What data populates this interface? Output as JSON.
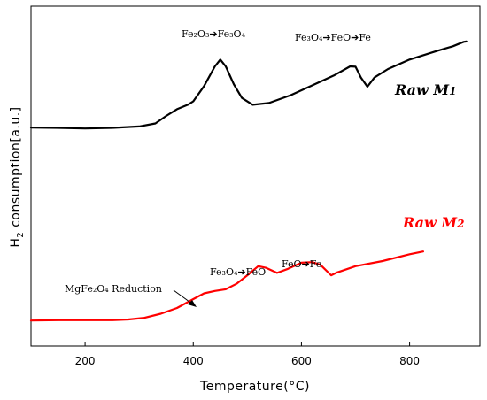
{
  "chart_data": {
    "type": "line",
    "xlabel": "Temperature(°C)",
    "ylabel_main": "H",
    "ylabel_sub": "2",
    "ylabel_rest": " consumption[a.u.]",
    "xlim": [
      100,
      930
    ],
    "ylim": [
      0,
      100
    ],
    "xticks": [
      200,
      400,
      600,
      800
    ],
    "series": [
      {
        "name_main": "Raw M",
        "name_sub": "1",
        "color": "#000000",
        "points": [
          [
            100,
            64.3
          ],
          [
            150,
            64.2
          ],
          [
            200,
            64.0
          ],
          [
            250,
            64.2
          ],
          [
            300,
            64.6
          ],
          [
            330,
            65.5
          ],
          [
            350,
            67.7
          ],
          [
            370,
            69.7
          ],
          [
            390,
            71.0
          ],
          [
            400,
            72.0
          ],
          [
            420,
            76.5
          ],
          [
            440,
            82.3
          ],
          [
            450,
            84.3
          ],
          [
            460,
            82.3
          ],
          [
            475,
            77.0
          ],
          [
            490,
            73.0
          ],
          [
            510,
            71.0
          ],
          [
            540,
            71.5
          ],
          [
            580,
            73.8
          ],
          [
            620,
            76.7
          ],
          [
            660,
            79.6
          ],
          [
            690,
            82.3
          ],
          [
            700,
            82.2
          ],
          [
            710,
            79.0
          ],
          [
            722,
            76.3
          ],
          [
            735,
            79.0
          ],
          [
            760,
            81.5
          ],
          [
            800,
            84.3
          ],
          [
            850,
            86.8
          ],
          [
            880,
            88.2
          ],
          [
            900,
            89.5
          ],
          [
            905,
            89.6
          ]
        ]
      },
      {
        "name_main": "Raw M",
        "name_sub": "2",
        "color": "#ff0000",
        "points": [
          [
            100,
            7.5
          ],
          [
            150,
            7.6
          ],
          [
            200,
            7.6
          ],
          [
            250,
            7.6
          ],
          [
            280,
            7.8
          ],
          [
            310,
            8.3
          ],
          [
            340,
            9.5
          ],
          [
            370,
            11.2
          ],
          [
            400,
            13.8
          ],
          [
            420,
            15.5
          ],
          [
            440,
            16.2
          ],
          [
            460,
            16.7
          ],
          [
            480,
            18.3
          ],
          [
            500,
            20.8
          ],
          [
            520,
            23.5
          ],
          [
            535,
            23.0
          ],
          [
            555,
            21.5
          ],
          [
            575,
            22.7
          ],
          [
            600,
            24.5
          ],
          [
            620,
            24.7
          ],
          [
            635,
            23.9
          ],
          [
            655,
            20.8
          ],
          [
            665,
            21.6
          ],
          [
            700,
            23.5
          ],
          [
            750,
            25.0
          ],
          [
            800,
            27.0
          ],
          [
            825,
            27.8
          ]
        ]
      }
    ],
    "annotations": {
      "m1_peak1": "Fe₂O₃➔Fe₃O₄",
      "m1_peak2": "Fe₃O₄➔FeO➔Fe",
      "m2_shoulder": "MgFe₂O₄ Reduction",
      "m2_peak1": "Fe₃O₄➔FeO",
      "m2_peak2": "FeO➔Fe"
    }
  }
}
